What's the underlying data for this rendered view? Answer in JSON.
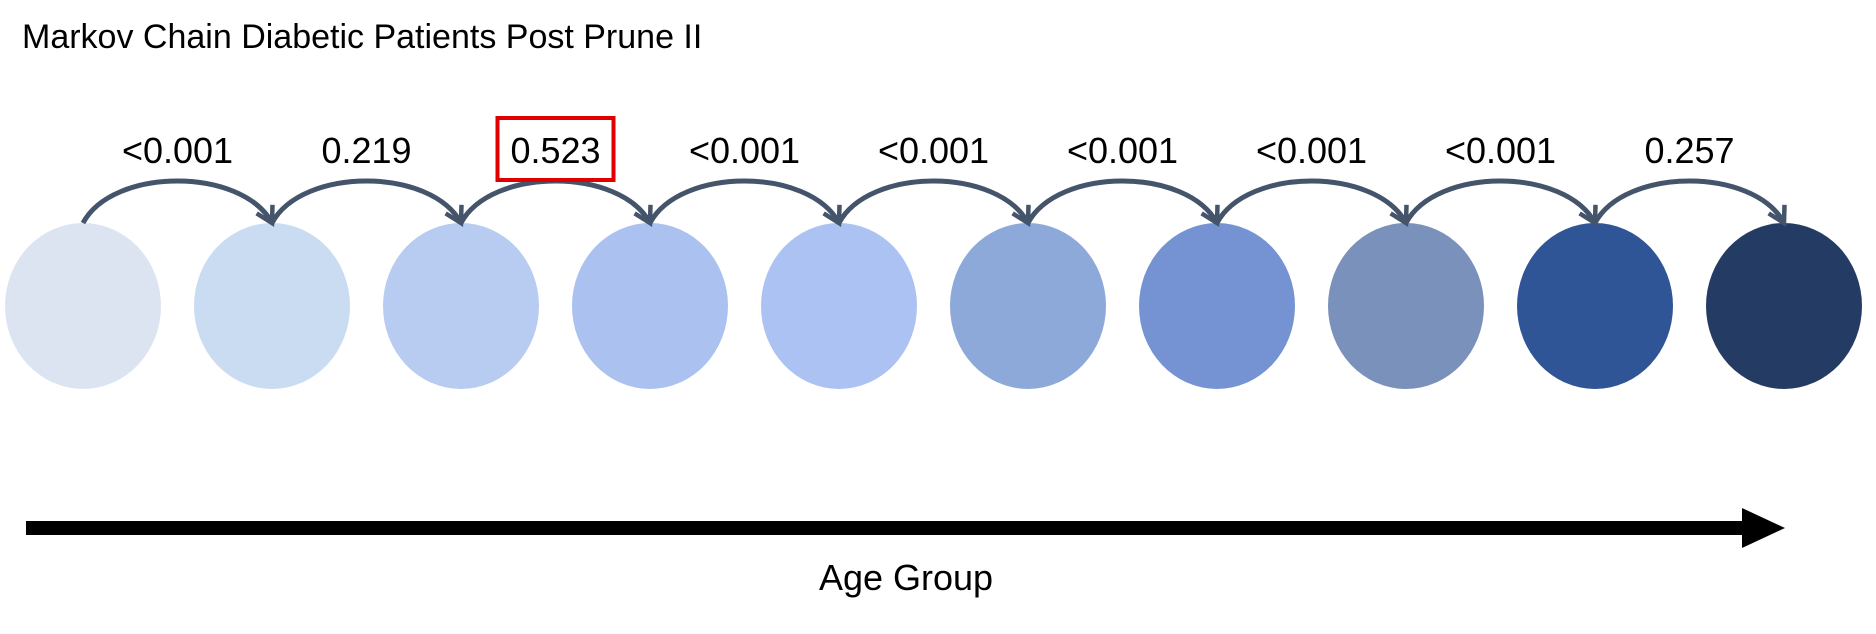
{
  "title": "Markov Chain Diabetic Patients Post Prune II",
  "axis_label": "Age Group",
  "state_colors": [
    "#dce4f2",
    "#cadcf2",
    "#b8cbf0",
    "#abc1f0",
    "#abc2f2",
    "#8da9da",
    "#7593d3",
    "#7a91bb",
    "#2f5597",
    "#243b63"
  ],
  "transitions": [
    {
      "label": "<0.001",
      "highlighted": false
    },
    {
      "label": "0.219",
      "highlighted": false
    },
    {
      "label": "0.523",
      "highlighted": true
    },
    {
      "label": "<0.001",
      "highlighted": false
    },
    {
      "label": "<0.001",
      "highlighted": false
    },
    {
      "label": "<0.001",
      "highlighted": false
    },
    {
      "label": "<0.001",
      "highlighted": false
    },
    {
      "label": "<0.001",
      "highlighted": false
    },
    {
      "label": "0.257",
      "highlighted": false
    }
  ],
  "colors": {
    "arc": "#44546a",
    "highlight_box": "#e00000",
    "axis_arrow": "#000000"
  }
}
